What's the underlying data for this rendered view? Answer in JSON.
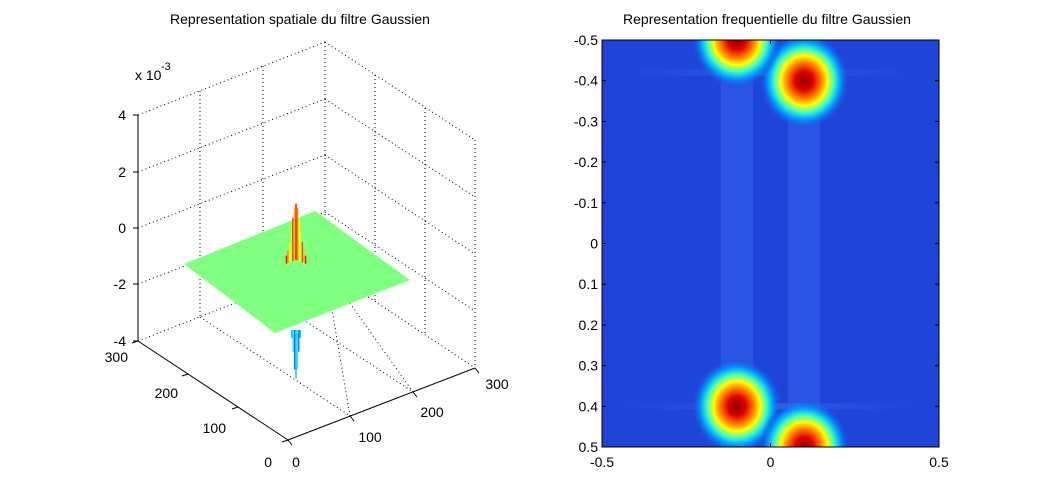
{
  "chart_data": [
    {
      "type": "surface",
      "title": "Representation spatiale du filtre Gaussien",
      "z_exponent_label": "x 10",
      "z_exponent_power": "-3",
      "zlim": [
        -4,
        4
      ],
      "z_ticks": [
        "4",
        "2",
        "0",
        "-2",
        "-4"
      ],
      "x_ticks": [
        "0",
        "100",
        "200",
        "300"
      ],
      "y_ticks": [
        "0",
        "100",
        "200",
        "300"
      ],
      "xlim": [
        0,
        300
      ],
      "ylim": [
        0,
        300
      ],
      "grid": true,
      "colormap": "jet",
      "base_plane_color": "#80ff80",
      "peak": {
        "x_center": 128,
        "y_center": 128,
        "max": 2.0,
        "min": -3.8
      }
    },
    {
      "type": "heatmap",
      "title": "Representation frequentielle du filtre Gaussien",
      "x_ticks": [
        "-0.5",
        "0",
        "0.5"
      ],
      "y_ticks": [
        "-0.5",
        "-0.4",
        "-0.3",
        "-0.2",
        "-0.1",
        "0",
        "0.1",
        "0.2",
        "0.3",
        "0.4",
        "0.5"
      ],
      "xlim": [
        -0.5,
        0.5
      ],
      "ylim": [
        -0.5,
        0.5
      ],
      "y_reversed": true,
      "colormap": "jet",
      "background_color": "#1f45d8",
      "peaks": [
        {
          "x": 0.1,
          "y": -0.4
        },
        {
          "x": -0.1,
          "y": 0.4
        },
        {
          "x": -0.1,
          "y": -0.5
        },
        {
          "x": 0.1,
          "y": 0.5
        }
      ]
    }
  ]
}
